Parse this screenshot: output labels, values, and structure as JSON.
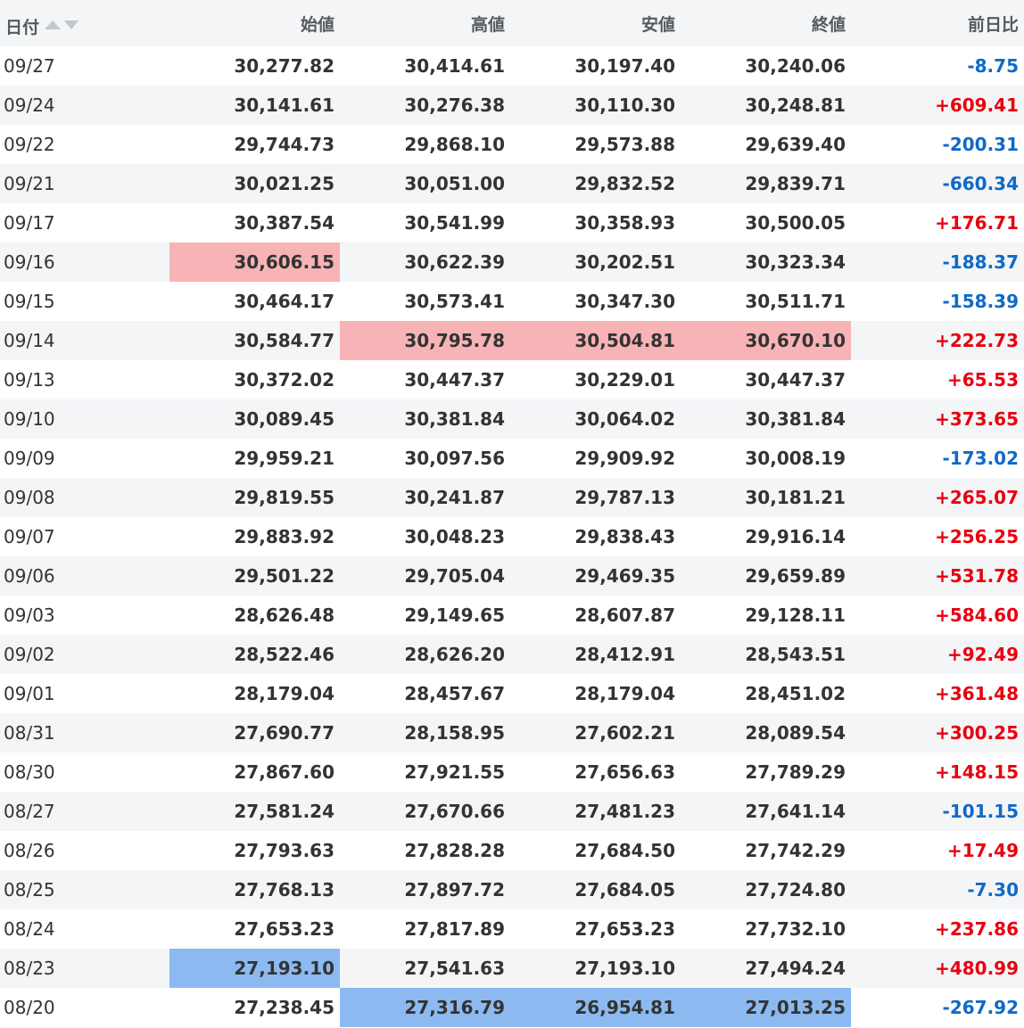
{
  "table": {
    "headers": [
      "日付",
      "始値",
      "高値",
      "安値",
      "終値",
      "前日比"
    ],
    "rows": [
      {
        "date": "09/27",
        "open": "30,277.82",
        "high": "30,414.61",
        "low": "30,197.40",
        "close": "30,240.06",
        "change": "-8.75",
        "dir": "down",
        "hl": {}
      },
      {
        "date": "09/24",
        "open": "30,141.61",
        "high": "30,276.38",
        "low": "30,110.30",
        "close": "30,248.81",
        "change": "+609.41",
        "dir": "up",
        "hl": {}
      },
      {
        "date": "09/22",
        "open": "29,744.73",
        "high": "29,868.10",
        "low": "29,573.88",
        "close": "29,639.40",
        "change": "-200.31",
        "dir": "down",
        "hl": {}
      },
      {
        "date": "09/21",
        "open": "30,021.25",
        "high": "30,051.00",
        "low": "29,832.52",
        "close": "29,839.71",
        "change": "-660.34",
        "dir": "down",
        "hl": {}
      },
      {
        "date": "09/17",
        "open": "30,387.54",
        "high": "30,541.99",
        "low": "30,358.93",
        "close": "30,500.05",
        "change": "+176.71",
        "dir": "up",
        "hl": {}
      },
      {
        "date": "09/16",
        "open": "30,606.15",
        "high": "30,622.39",
        "low": "30,202.51",
        "close": "30,323.34",
        "change": "-188.37",
        "dir": "down",
        "hl": {
          "open": "high"
        }
      },
      {
        "date": "09/15",
        "open": "30,464.17",
        "high": "30,573.41",
        "low": "30,347.30",
        "close": "30,511.71",
        "change": "-158.39",
        "dir": "down",
        "hl": {}
      },
      {
        "date": "09/14",
        "open": "30,584.77",
        "high": "30,795.78",
        "low": "30,504.81",
        "close": "30,670.10",
        "change": "+222.73",
        "dir": "up",
        "hl": {
          "high": "high",
          "low": "high",
          "close": "high"
        }
      },
      {
        "date": "09/13",
        "open": "30,372.02",
        "high": "30,447.37",
        "low": "30,229.01",
        "close": "30,447.37",
        "change": "+65.53",
        "dir": "up",
        "hl": {}
      },
      {
        "date": "09/10",
        "open": "30,089.45",
        "high": "30,381.84",
        "low": "30,064.02",
        "close": "30,381.84",
        "change": "+373.65",
        "dir": "up",
        "hl": {}
      },
      {
        "date": "09/09",
        "open": "29,959.21",
        "high": "30,097.56",
        "low": "29,909.92",
        "close": "30,008.19",
        "change": "-173.02",
        "dir": "down",
        "hl": {}
      },
      {
        "date": "09/08",
        "open": "29,819.55",
        "high": "30,241.87",
        "low": "29,787.13",
        "close": "30,181.21",
        "change": "+265.07",
        "dir": "up",
        "hl": {}
      },
      {
        "date": "09/07",
        "open": "29,883.92",
        "high": "30,048.23",
        "low": "29,838.43",
        "close": "29,916.14",
        "change": "+256.25",
        "dir": "up",
        "hl": {}
      },
      {
        "date": "09/06",
        "open": "29,501.22",
        "high": "29,705.04",
        "low": "29,469.35",
        "close": "29,659.89",
        "change": "+531.78",
        "dir": "up",
        "hl": {}
      },
      {
        "date": "09/03",
        "open": "28,626.48",
        "high": "29,149.65",
        "low": "28,607.87",
        "close": "29,128.11",
        "change": "+584.60",
        "dir": "up",
        "hl": {}
      },
      {
        "date": "09/02",
        "open": "28,522.46",
        "high": "28,626.20",
        "low": "28,412.91",
        "close": "28,543.51",
        "change": "+92.49",
        "dir": "up",
        "hl": {}
      },
      {
        "date": "09/01",
        "open": "28,179.04",
        "high": "28,457.67",
        "low": "28,179.04",
        "close": "28,451.02",
        "change": "+361.48",
        "dir": "up",
        "hl": {}
      },
      {
        "date": "08/31",
        "open": "27,690.77",
        "high": "28,158.95",
        "low": "27,602.21",
        "close": "28,089.54",
        "change": "+300.25",
        "dir": "up",
        "hl": {}
      },
      {
        "date": "08/30",
        "open": "27,867.60",
        "high": "27,921.55",
        "low": "27,656.63",
        "close": "27,789.29",
        "change": "+148.15",
        "dir": "up",
        "hl": {}
      },
      {
        "date": "08/27",
        "open": "27,581.24",
        "high": "27,670.66",
        "low": "27,481.23",
        "close": "27,641.14",
        "change": "-101.15",
        "dir": "down",
        "hl": {}
      },
      {
        "date": "08/26",
        "open": "27,793.63",
        "high": "27,828.28",
        "low": "27,684.50",
        "close": "27,742.29",
        "change": "+17.49",
        "dir": "up",
        "hl": {}
      },
      {
        "date": "08/25",
        "open": "27,768.13",
        "high": "27,897.72",
        "low": "27,684.05",
        "close": "27,724.80",
        "change": "-7.30",
        "dir": "down",
        "hl": {}
      },
      {
        "date": "08/24",
        "open": "27,653.23",
        "high": "27,817.89",
        "low": "27,653.23",
        "close": "27,732.10",
        "change": "+237.86",
        "dir": "up",
        "hl": {}
      },
      {
        "date": "08/23",
        "open": "27,193.10",
        "high": "27,541.63",
        "low": "27,193.10",
        "close": "27,494.24",
        "change": "+480.99",
        "dir": "up",
        "hl": {
          "open": "low"
        }
      },
      {
        "date": "08/20",
        "open": "27,238.45",
        "high": "27,316.79",
        "low": "26,954.81",
        "close": "27,013.25",
        "change": "-267.92",
        "dir": "down",
        "hl": {
          "high": "low",
          "low": "low",
          "close": "low"
        }
      }
    ]
  },
  "colors": {
    "up": "#e8000f",
    "down": "#0f6ac7",
    "highlight_high": "#f8b3b6",
    "highlight_low": "#8cbaf0"
  },
  "icons": {
    "sort_asc": "sort-asc-icon",
    "sort_desc": "sort-desc-icon"
  }
}
